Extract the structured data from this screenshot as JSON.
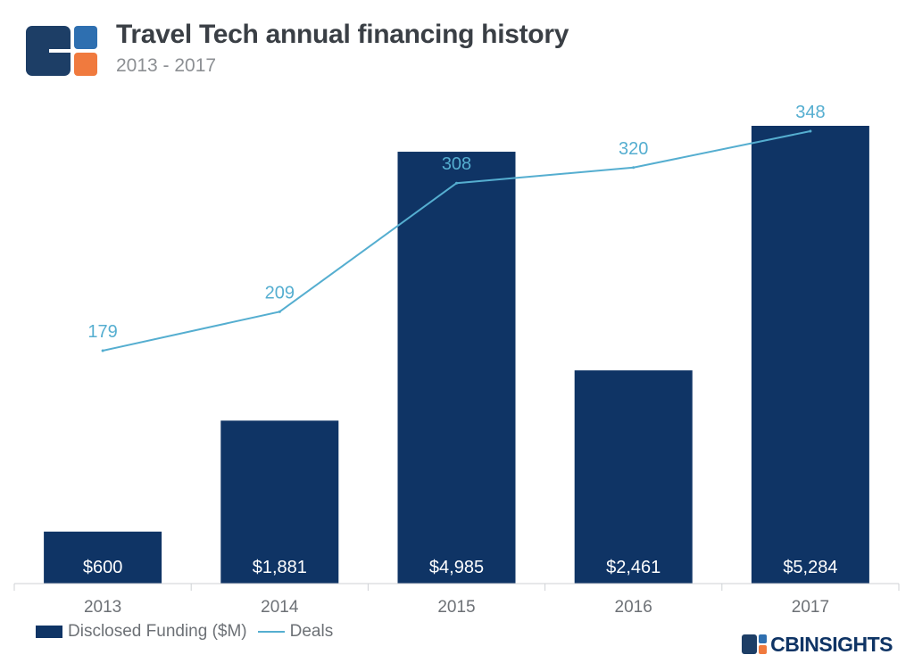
{
  "header": {
    "title": "Travel Tech annual financing history",
    "subtitle": "2013 - 2017"
  },
  "brand": {
    "text": "CBINSIGHTS"
  },
  "colors": {
    "bar": "#0f3465",
    "line": "#55aed0",
    "logo_dark": "#1d3e66",
    "logo_light": "#2e6fb0",
    "logo_accent": "#f07a3e",
    "axis": "#cfd2d6",
    "tick_text": "#6d7176"
  },
  "icons": {
    "logo": "cb-insights-logo-icon",
    "brand": "cb-insights-small-logo-icon"
  },
  "chart_data": {
    "type": "bar",
    "categories": [
      "2013",
      "2014",
      "2015",
      "2016",
      "2017"
    ],
    "series": [
      {
        "name": "Disclosed Funding ($M)",
        "type": "bar",
        "values": [
          600,
          1881,
          4985,
          2461,
          5284
        ],
        "labels": [
          "$600",
          "$1,881",
          "$4,985",
          "$2,461",
          "$5,284"
        ]
      },
      {
        "name": "Deals",
        "type": "line",
        "values": [
          179,
          209,
          308,
          320,
          348
        ],
        "labels": [
          "179",
          "209",
          "308",
          "320",
          "348"
        ]
      }
    ],
    "legend": {
      "position": "bottom-left",
      "labels": [
        "Disclosed Funding ($M)",
        "Deals"
      ]
    },
    "grid": false,
    "title": "Travel Tech annual financing history",
    "subtitle": "2013 - 2017"
  }
}
